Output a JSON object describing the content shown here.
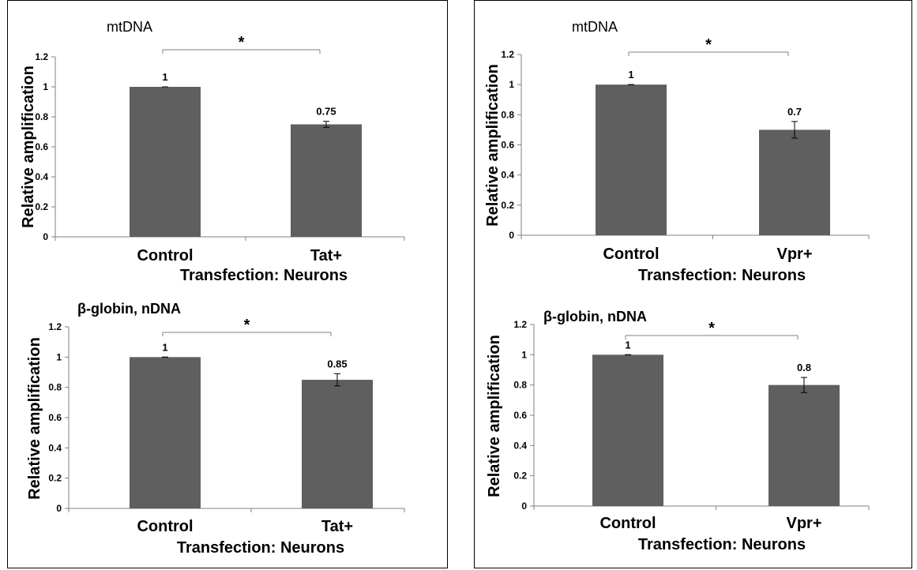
{
  "chart_data": [
    {
      "type": "bar",
      "title": "mtDNA",
      "categories": [
        "Control",
        "Tat+"
      ],
      "values": [
        1,
        0.75
      ],
      "errors": [
        0,
        0.02
      ],
      "data_labels": [
        "1",
        "0.75"
      ],
      "xlabel": "Transfection: Neurons",
      "ylabel": "Relative amplification",
      "ylim": [
        0,
        1.2
      ],
      "yticks": [
        "0",
        "0.2",
        "0.4",
        "0.6",
        "0.8",
        "1",
        "1.2"
      ],
      "significance": "*",
      "bar_color": "#5f5f5f"
    },
    {
      "type": "bar",
      "title": "mtDNA",
      "categories": [
        "Control",
        "Vpr+"
      ],
      "values": [
        1,
        0.7
      ],
      "errors": [
        0,
        0.055
      ],
      "data_labels": [
        "1",
        "0.7"
      ],
      "xlabel": "Transfection: Neurons",
      "ylabel": "Relative amplification",
      "ylim": [
        0,
        1.2
      ],
      "yticks": [
        "0",
        "0.2",
        "0.4",
        "0.6",
        "0.8",
        "1",
        "1.2"
      ],
      "significance": "*",
      "bar_color": "#5f5f5f"
    },
    {
      "type": "bar",
      "title": "β-globin, nDNA",
      "categories": [
        "Control",
        "Tat+"
      ],
      "values": [
        1,
        0.85
      ],
      "errors": [
        0,
        0.04
      ],
      "data_labels": [
        "1",
        "0.85"
      ],
      "xlabel": "Transfection: Neurons",
      "ylabel": "Relative amplification",
      "ylim": [
        0,
        1.2
      ],
      "yticks": [
        "0",
        "0.2",
        "0.4",
        "0.6",
        "0.8",
        "1",
        "1.2"
      ],
      "significance": "*",
      "bar_color": "#5f5f5f"
    },
    {
      "type": "bar",
      "title": "β-globin, nDNA",
      "categories": [
        "Control",
        "Vpr+"
      ],
      "values": [
        1,
        0.8
      ],
      "errors": [
        0,
        0.05
      ],
      "data_labels": [
        "1",
        "0.8"
      ],
      "xlabel": "Transfection: Neurons",
      "ylabel": "Relative amplification",
      "ylim": [
        0,
        1.2
      ],
      "yticks": [
        "0",
        "0.2",
        "0.4",
        "0.6",
        "0.8",
        "1",
        "1.2"
      ],
      "significance": "*",
      "bar_color": "#5f5f5f"
    }
  ]
}
